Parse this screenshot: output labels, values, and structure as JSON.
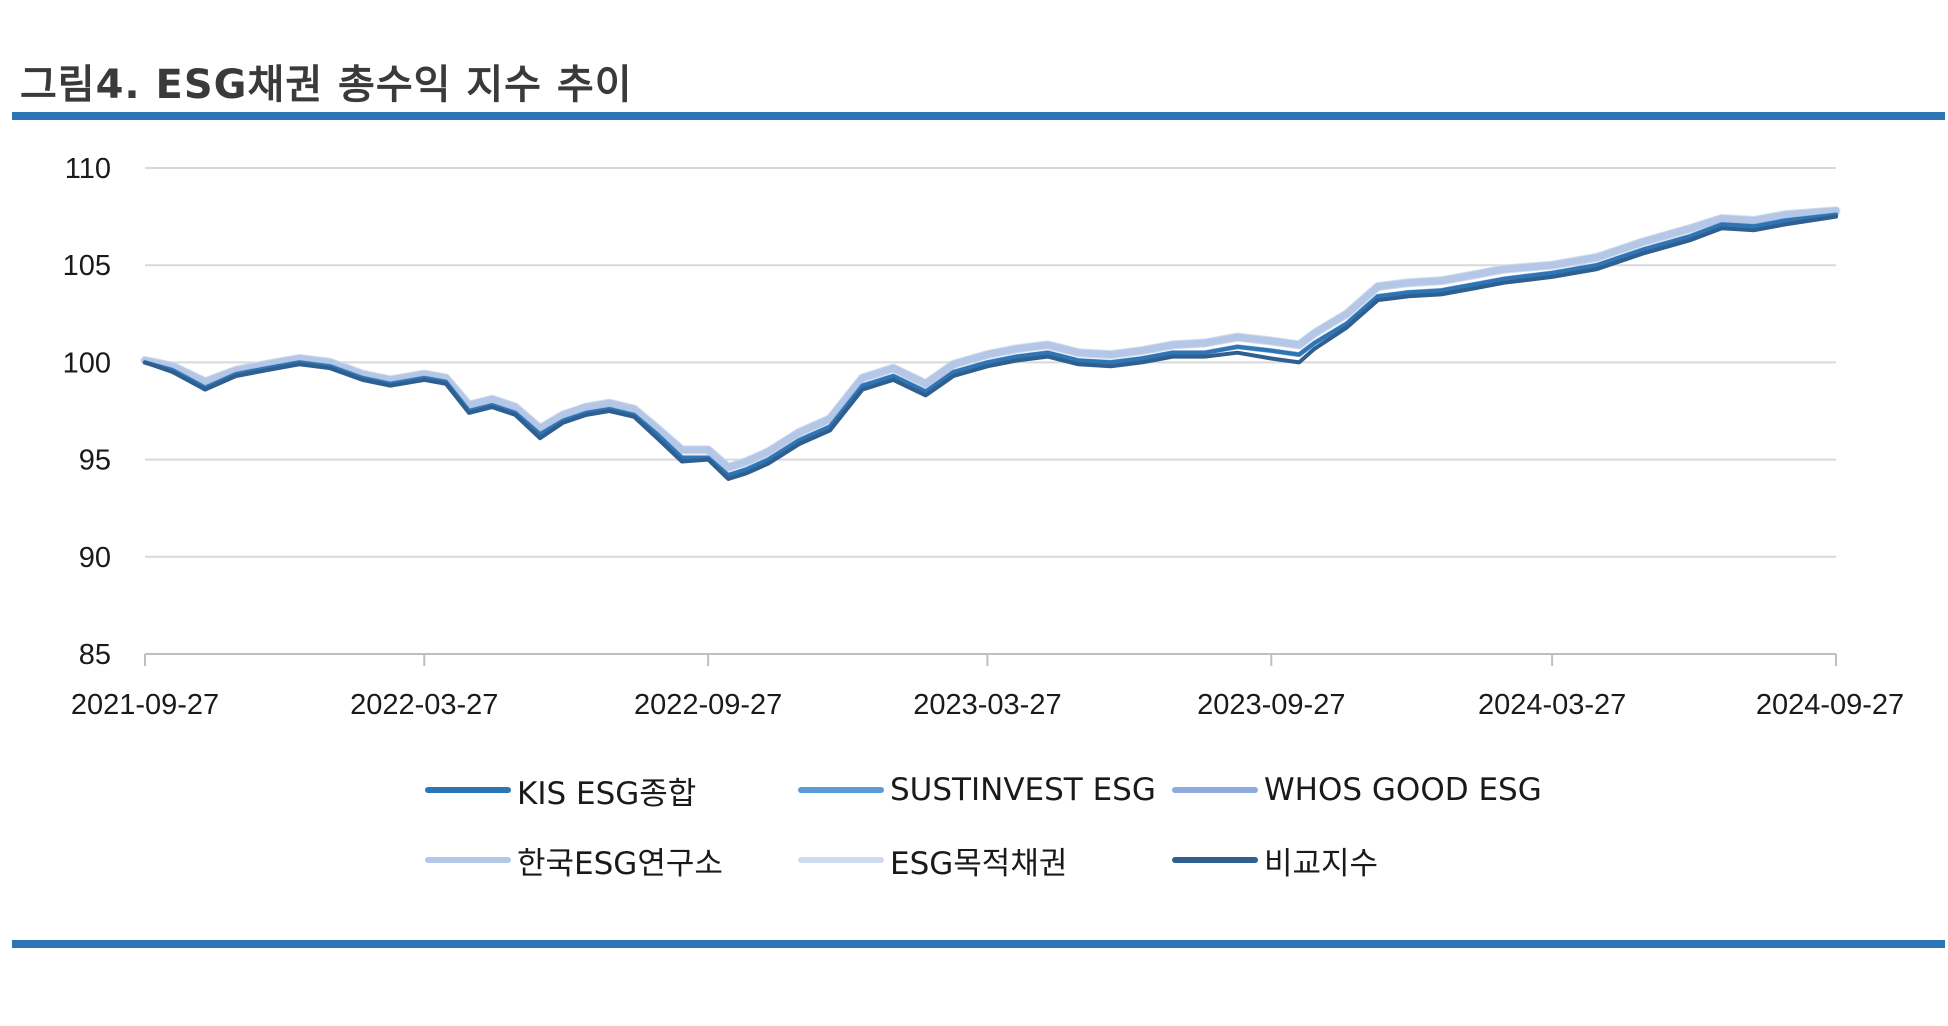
{
  "figure": {
    "title": "그림4. ESG채권 총수익 지수 추이"
  },
  "chart_data": {
    "type": "line",
    "title": "그림4. ESG채권 총수익 지수 추이",
    "xlabel": "",
    "ylabel": "",
    "ylim": [
      85,
      110
    ],
    "yticks": [
      "110",
      "105",
      "100",
      "95",
      "90",
      "85"
    ],
    "xticks": [
      "2021-09-27",
      "2022-03-27",
      "2022-09-27",
      "2023-03-27",
      "2023-09-27",
      "2024-03-27",
      "2024-09-27"
    ],
    "grid": "horizontal",
    "legend_position": "bottom",
    "x": [
      "2021-09-27",
      "2021-10-15",
      "2021-11-05",
      "2021-11-25",
      "2021-12-15",
      "2022-01-05",
      "2022-01-25",
      "2022-02-15",
      "2022-03-05",
      "2022-03-27",
      "2022-04-10",
      "2022-04-25",
      "2022-05-10",
      "2022-05-25",
      "2022-06-10",
      "2022-06-25",
      "2022-07-10",
      "2022-07-25",
      "2022-08-10",
      "2022-08-25",
      "2022-09-10",
      "2022-09-27",
      "2022-10-10",
      "2022-10-22",
      "2022-11-05",
      "2022-11-25",
      "2022-12-15",
      "2023-01-05",
      "2023-01-25",
      "2023-02-15",
      "2023-03-05",
      "2023-03-27",
      "2023-04-15",
      "2023-05-05",
      "2023-05-25",
      "2023-06-15",
      "2023-07-05",
      "2023-07-25",
      "2023-08-15",
      "2023-09-05",
      "2023-09-27",
      "2023-10-15",
      "2023-10-25",
      "2023-11-15",
      "2023-12-05",
      "2023-12-25",
      "2024-01-15",
      "2024-02-05",
      "2024-02-25",
      "2024-03-27",
      "2024-04-25",
      "2024-05-25",
      "2024-06-25",
      "2024-07-15",
      "2024-08-05",
      "2024-08-25",
      "2024-09-27"
    ],
    "series": [
      {
        "name": "KIS ESG종합",
        "color": "#2e75b6",
        "values": [
          100.0,
          99.6,
          98.7,
          99.4,
          99.7,
          100.0,
          99.8,
          99.2,
          98.9,
          99.2,
          99.0,
          97.5,
          97.8,
          97.4,
          96.3,
          97.0,
          97.4,
          97.6,
          97.3,
          96.3,
          95.1,
          95.1,
          94.2,
          94.5,
          95.0,
          96.0,
          96.7,
          98.8,
          99.3,
          98.5,
          99.5,
          100.0,
          100.3,
          100.5,
          100.1,
          100.0,
          100.2,
          100.5,
          100.5,
          100.8,
          100.6,
          100.4,
          101.0,
          102.0,
          103.4,
          103.6,
          103.7,
          104.0,
          104.3,
          104.6,
          105.0,
          105.8,
          106.5,
          107.1,
          107.0,
          107.3,
          107.6
        ]
      },
      {
        "name": "SUSTINVEST ESG",
        "color": "#5b9bd5",
        "values": [
          100.0,
          99.6,
          98.7,
          99.4,
          99.7,
          100.0,
          99.8,
          99.2,
          98.9,
          99.2,
          99.0,
          97.5,
          97.8,
          97.4,
          96.3,
          97.0,
          97.4,
          97.6,
          97.3,
          96.3,
          95.1,
          95.1,
          94.2,
          94.5,
          95.0,
          96.0,
          96.7,
          98.8,
          99.3,
          98.5,
          99.5,
          100.0,
          100.3,
          100.5,
          100.1,
          100.0,
          100.2,
          100.5,
          100.5,
          100.8,
          100.6,
          100.4,
          101.0,
          102.0,
          103.4,
          103.6,
          103.7,
          104.0,
          104.3,
          104.6,
          105.0,
          105.8,
          106.5,
          107.1,
          107.0,
          107.3,
          107.6
        ]
      },
      {
        "name": "WHOS GOOD ESG",
        "color": "#8faadc",
        "values": [
          100.0,
          99.6,
          98.7,
          99.4,
          99.7,
          100.0,
          99.8,
          99.2,
          98.9,
          99.2,
          99.0,
          97.5,
          97.8,
          97.4,
          96.3,
          97.0,
          97.4,
          97.6,
          97.3,
          96.3,
          95.1,
          95.1,
          94.2,
          94.5,
          95.0,
          96.0,
          96.7,
          98.8,
          99.3,
          98.5,
          99.5,
          100.0,
          100.3,
          100.5,
          100.1,
          100.0,
          100.2,
          100.5,
          100.5,
          100.8,
          100.6,
          100.4,
          101.0,
          102.0,
          103.4,
          103.6,
          103.7,
          104.0,
          104.3,
          104.6,
          105.0,
          105.8,
          106.5,
          107.1,
          107.0,
          107.3,
          107.6
        ]
      },
      {
        "name": "한국ESG연구소",
        "color": "#b4c7e7",
        "values": [
          100.1,
          99.8,
          99.0,
          99.6,
          99.9,
          100.2,
          100.0,
          99.4,
          99.1,
          99.4,
          99.2,
          97.8,
          98.1,
          97.7,
          96.6,
          97.3,
          97.7,
          97.9,
          97.6,
          96.6,
          95.5,
          95.5,
          94.6,
          94.9,
          95.4,
          96.4,
          97.1,
          99.2,
          99.7,
          98.9,
          99.9,
          100.4,
          100.7,
          100.9,
          100.5,
          100.4,
          100.6,
          100.9,
          101.0,
          101.3,
          101.1,
          100.9,
          101.5,
          102.5,
          103.9,
          104.1,
          104.2,
          104.5,
          104.8,
          105.0,
          105.4,
          106.2,
          106.9,
          107.4,
          107.3,
          107.6,
          107.8
        ]
      },
      {
        "name": "ESG목적채권",
        "color": "#d0dcee",
        "values": [
          100.1,
          99.8,
          99.0,
          99.6,
          99.9,
          100.2,
          100.0,
          99.4,
          99.1,
          99.4,
          99.2,
          97.8,
          98.1,
          97.7,
          96.6,
          97.3,
          97.7,
          97.9,
          97.6,
          96.6,
          95.5,
          95.5,
          94.6,
          94.9,
          95.4,
          96.4,
          97.1,
          99.2,
          99.7,
          98.9,
          99.9,
          100.4,
          100.7,
          100.9,
          100.5,
          100.4,
          100.6,
          100.9,
          101.0,
          101.3,
          101.1,
          100.9,
          101.5,
          102.5,
          103.9,
          104.1,
          104.2,
          104.5,
          104.8,
          105.0,
          105.4,
          106.2,
          106.9,
          107.4,
          107.3,
          107.6,
          107.8
        ]
      },
      {
        "name": "비교지수",
        "color": "#2f5f8f",
        "values": [
          100.0,
          99.5,
          98.6,
          99.3,
          99.6,
          99.9,
          99.7,
          99.1,
          98.8,
          99.1,
          98.9,
          97.4,
          97.7,
          97.3,
          96.1,
          96.9,
          97.3,
          97.5,
          97.2,
          96.1,
          94.9,
          95.0,
          94.0,
          94.3,
          94.8,
          95.8,
          96.5,
          98.6,
          99.1,
          98.3,
          99.3,
          99.8,
          100.1,
          100.3,
          99.9,
          99.8,
          100.0,
          100.3,
          100.3,
          100.5,
          100.2,
          100.0,
          100.7,
          101.8,
          103.2,
          103.4,
          103.5,
          103.8,
          104.1,
          104.4,
          104.8,
          105.6,
          106.3,
          106.9,
          106.8,
          107.1,
          107.5
        ]
      }
    ]
  }
}
